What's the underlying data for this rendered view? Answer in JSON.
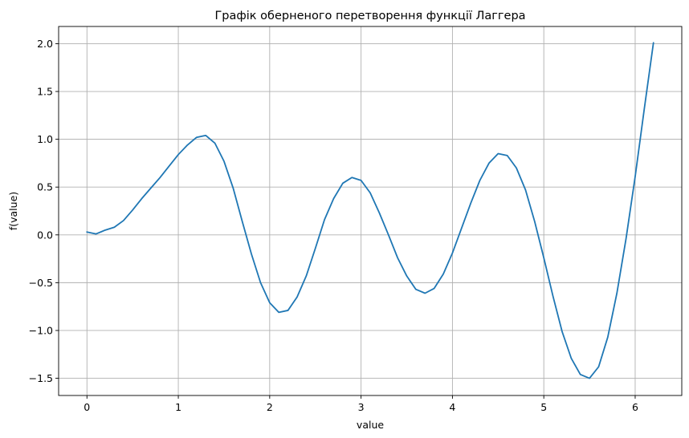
{
  "chart_data": {
    "type": "line",
    "title": "Графік оберненого перетворення функції Лаггера",
    "xlabel": "value",
    "ylabel": "f(value)",
    "xlim": [
      -0.31,
      6.51
    ],
    "ylim": [
      -1.68,
      2.18
    ],
    "grid": true,
    "xticks": [
      0,
      1,
      2,
      3,
      4,
      5,
      6
    ],
    "xtick_labels": [
      "0",
      "1",
      "2",
      "3",
      "4",
      "5",
      "6"
    ],
    "yticks": [
      -1.5,
      -1.0,
      -0.5,
      0.0,
      0.5,
      1.0,
      1.5,
      2.0
    ],
    "ytick_labels": [
      "−1.5",
      "−1.0",
      "−0.5",
      "0.0",
      "0.5",
      "1.0",
      "1.5",
      "2.0"
    ],
    "series": [
      {
        "color": "#1f77b4",
        "x": [
          0.0,
          0.1,
          0.2,
          0.3,
          0.4,
          0.5,
          0.6,
          0.7,
          0.8,
          0.9,
          1.0,
          1.1,
          1.2,
          1.3,
          1.4,
          1.5,
          1.6,
          1.7,
          1.8,
          1.9,
          2.0,
          2.1,
          2.2,
          2.3,
          2.4,
          2.5,
          2.6,
          2.7,
          2.8,
          2.9,
          3.0,
          3.1,
          3.2,
          3.3,
          3.4,
          3.5,
          3.6,
          3.7,
          3.8,
          3.9,
          4.0,
          4.1,
          4.2,
          4.3,
          4.4,
          4.5,
          4.6,
          4.7,
          4.8,
          4.9,
          5.0,
          5.1,
          5.2,
          5.3,
          5.4,
          5.5,
          5.6,
          5.7,
          5.8,
          5.9,
          6.0,
          6.1,
          6.2
        ],
        "y": [
          0.03,
          0.01,
          0.05,
          0.08,
          0.15,
          0.26,
          0.38,
          0.49,
          0.6,
          0.72,
          0.84,
          0.94,
          1.02,
          1.04,
          0.96,
          0.77,
          0.49,
          0.14,
          -0.2,
          -0.5,
          -0.71,
          -0.81,
          -0.79,
          -0.65,
          -0.43,
          -0.14,
          0.16,
          0.38,
          0.54,
          0.6,
          0.57,
          0.44,
          0.23,
          0.0,
          -0.24,
          -0.43,
          -0.57,
          -0.61,
          -0.56,
          -0.41,
          -0.19,
          0.07,
          0.33,
          0.57,
          0.75,
          0.85,
          0.83,
          0.7,
          0.47,
          0.14,
          -0.24,
          -0.64,
          -1.01,
          -1.29,
          -1.46,
          -1.5,
          -1.38,
          -1.07,
          -0.61,
          -0.04,
          0.61,
          1.32,
          2.01
        ]
      }
    ]
  }
}
